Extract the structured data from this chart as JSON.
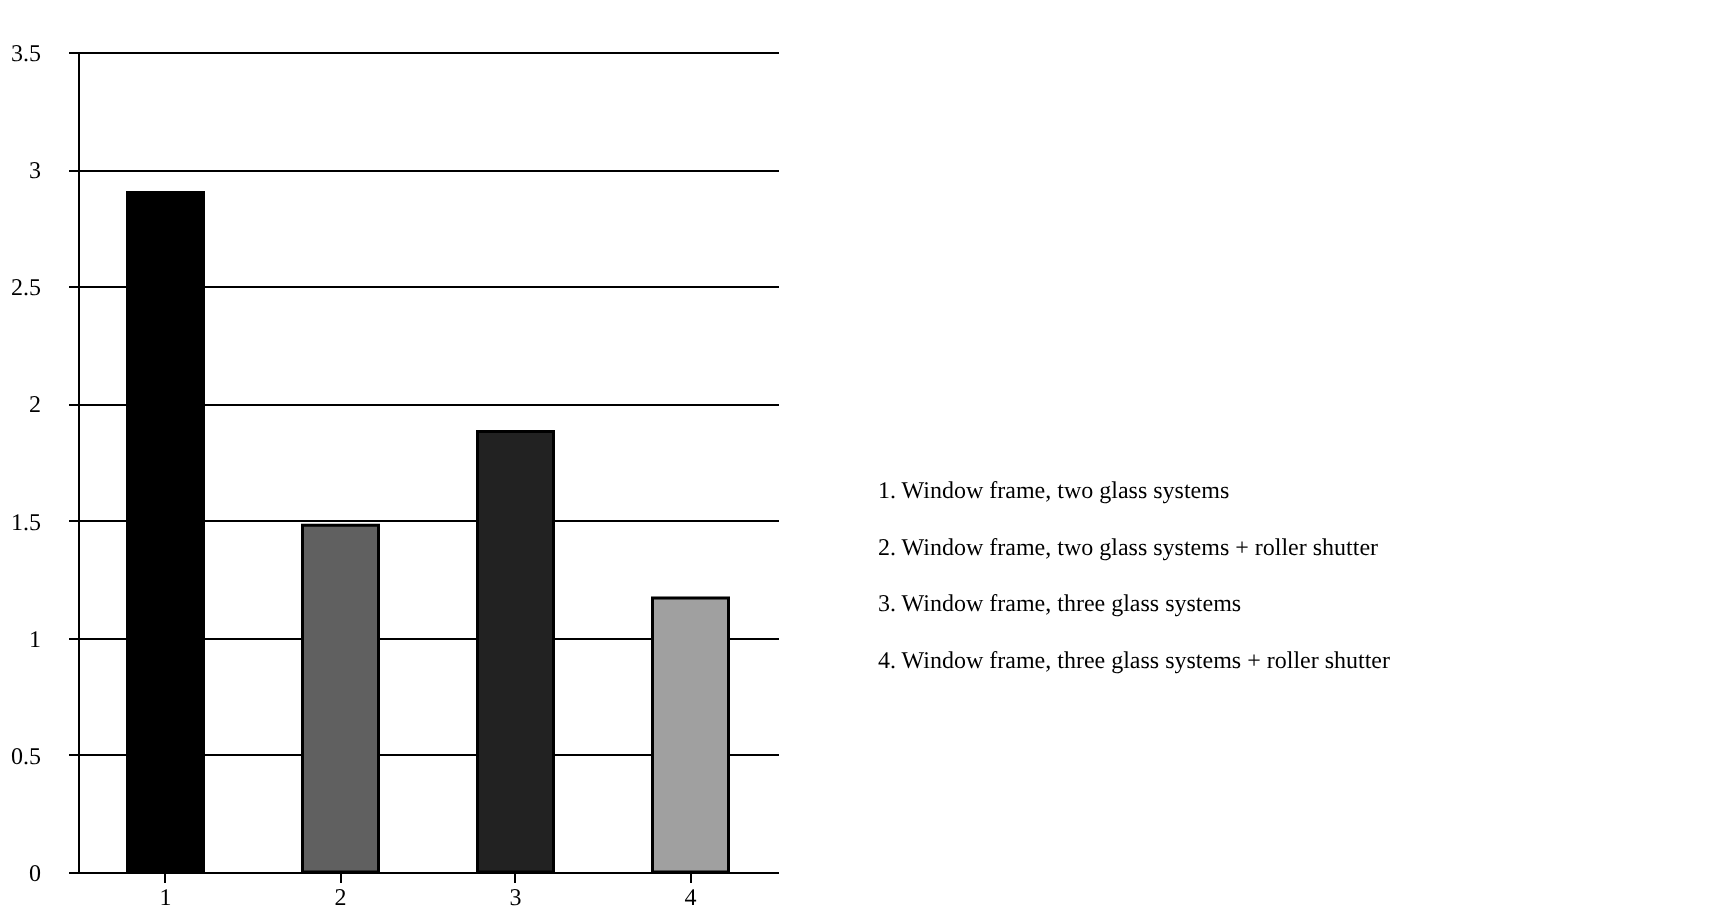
{
  "chart_data": {
    "type": "bar",
    "categories": [
      "1",
      "2",
      "3",
      "4"
    ],
    "values": [
      2.9,
      1.48,
      1.88,
      1.17
    ],
    "colors": [
      "#000000",
      "#606060",
      "#222222",
      "#a0a0a0"
    ],
    "ylim": [
      0,
      3.5
    ],
    "yticks": [
      0,
      0.5,
      1,
      1.5,
      2,
      2.5,
      3,
      3.5
    ],
    "grid": "y",
    "annotations": [
      "1. Window frame, two glass systems",
      "2. Window frame, two glass systems + roller shutter",
      "3. Window frame, three glass systems",
      "4. Window frame, three glass systems + roller shutter"
    ]
  }
}
